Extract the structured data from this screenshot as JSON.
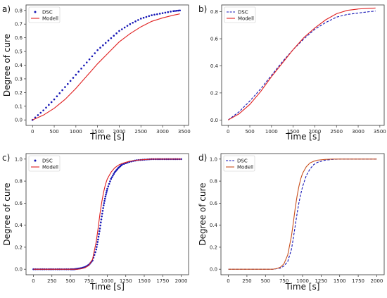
{
  "chart_data": [
    {
      "panel_label": "a)",
      "type": "line",
      "xlabel": "Time [s]",
      "ylabel": "Degree of cure",
      "xlim": [
        -150,
        3600
      ],
      "ylim": [
        -0.04,
        0.84
      ],
      "xticks": [
        0,
        500,
        1000,
        1500,
        2000,
        2500,
        3000,
        3500
      ],
      "yticks": [
        0.0,
        0.1,
        0.2,
        0.3,
        0.4,
        0.5,
        0.6,
        0.7,
        0.8
      ],
      "ytick_labels": [
        "0.0",
        "0.1",
        "0.2",
        "0.3",
        "0.4",
        "0.5",
        "0.6",
        "0.7",
        "0.8"
      ],
      "grid": false,
      "legend": "upper-left",
      "series": [
        {
          "name": "DSC",
          "style": "dots",
          "color": "#1515b5",
          "x": [
            0,
            250,
            500,
            750,
            1000,
            1250,
            1500,
            1750,
            2000,
            2250,
            2500,
            2750,
            3000,
            3250,
            3400
          ],
          "y": [
            0.0,
            0.07,
            0.15,
            0.24,
            0.33,
            0.42,
            0.51,
            0.58,
            0.65,
            0.7,
            0.74,
            0.765,
            0.78,
            0.795,
            0.8
          ]
        },
        {
          "name": "Modell",
          "style": "line",
          "color": "#e02020",
          "x": [
            0,
            250,
            500,
            750,
            1000,
            1250,
            1500,
            1750,
            2000,
            2250,
            2500,
            2750,
            3000,
            3250,
            3400
          ],
          "y": [
            0.0,
            0.035,
            0.085,
            0.15,
            0.23,
            0.32,
            0.41,
            0.49,
            0.57,
            0.63,
            0.68,
            0.72,
            0.745,
            0.765,
            0.775
          ]
        }
      ]
    },
    {
      "panel_label": "b)",
      "type": "line",
      "xlabel": "Time [s]",
      "ylabel": "",
      "xlim": [
        -150,
        3600
      ],
      "ylim": [
        -0.04,
        0.85
      ],
      "xticks": [
        0,
        500,
        1000,
        1500,
        2000,
        2500,
        3000,
        3500
      ],
      "yticks": [
        0.0,
        0.2,
        0.4,
        0.6,
        0.8
      ],
      "ytick_labels": [
        "0.0",
        "0.2",
        "0.4",
        "0.6",
        "0.8"
      ],
      "grid": false,
      "legend": "upper-left",
      "series": [
        {
          "name": "DSC",
          "style": "dashed",
          "color": "#1515b5",
          "x": [
            0,
            250,
            500,
            750,
            1000,
            1250,
            1500,
            1750,
            2000,
            2250,
            2500,
            2750,
            3000,
            3250,
            3400
          ],
          "y": [
            0.0,
            0.06,
            0.14,
            0.23,
            0.33,
            0.43,
            0.52,
            0.6,
            0.67,
            0.72,
            0.76,
            0.78,
            0.79,
            0.8,
            0.805
          ]
        },
        {
          "name": "Modell",
          "style": "line",
          "color": "#e02020",
          "x": [
            0,
            250,
            500,
            750,
            1000,
            1250,
            1500,
            1750,
            2000,
            2250,
            2500,
            2750,
            3000,
            3250,
            3400
          ],
          "y": [
            0.0,
            0.045,
            0.115,
            0.21,
            0.32,
            0.42,
            0.52,
            0.61,
            0.68,
            0.74,
            0.785,
            0.81,
            0.82,
            0.825,
            0.827
          ]
        }
      ]
    },
    {
      "panel_label": "c)",
      "type": "line",
      "xlabel": "Time [s]",
      "ylabel": "Degree of cure",
      "xlim": [
        -100,
        2100
      ],
      "ylim": [
        -0.05,
        1.05
      ],
      "xticks": [
        0,
        250,
        500,
        750,
        1000,
        1250,
        1500,
        1750,
        2000
      ],
      "yticks": [
        0.0,
        0.2,
        0.4,
        0.6,
        0.8,
        1.0
      ],
      "ytick_labels": [
        "0.0",
        "0.2",
        "0.4",
        "0.6",
        "0.8",
        "1.0"
      ],
      "grid": false,
      "legend": "upper-left",
      "series": [
        {
          "name": "DSC",
          "style": "dots",
          "color": "#1515b5",
          "x": [
            0,
            100,
            200,
            300,
            400,
            500,
            550,
            600,
            650,
            700,
            750,
            800,
            850,
            875,
            900,
            925,
            950,
            975,
            1000,
            1050,
            1100,
            1150,
            1200,
            1300,
            1400,
            1500,
            1600,
            1700,
            1800,
            1900,
            2000
          ],
          "y": [
            0.0,
            0.0,
            0.0,
            0.0,
            0.0,
            0.0,
            0.0,
            0.005,
            0.01,
            0.02,
            0.04,
            0.08,
            0.18,
            0.27,
            0.37,
            0.48,
            0.58,
            0.66,
            0.73,
            0.82,
            0.88,
            0.92,
            0.95,
            0.975,
            0.99,
            0.995,
            1.0,
            1.0,
            1.0,
            1.0,
            1.0
          ]
        },
        {
          "name": "Modell",
          "style": "line",
          "color": "#e02020",
          "x": [
            0,
            100,
            200,
            300,
            400,
            500,
            600,
            650,
            700,
            750,
            800,
            850,
            875,
            900,
            925,
            950,
            975,
            1000,
            1050,
            1100,
            1150,
            1200,
            1300,
            1400,
            1500,
            1600,
            1750,
            2000
          ],
          "y": [
            0.0,
            0.0,
            0.0,
            0.0,
            0.0,
            0.0,
            0.0,
            0.005,
            0.015,
            0.035,
            0.09,
            0.25,
            0.37,
            0.5,
            0.61,
            0.7,
            0.77,
            0.82,
            0.88,
            0.92,
            0.945,
            0.96,
            0.98,
            0.99,
            0.995,
            1.0,
            1.0,
            1.0
          ]
        }
      ]
    },
    {
      "panel_label": "d)",
      "type": "line",
      "xlabel": "Time [s]",
      "ylabel": "Degree of cure",
      "xlim": [
        -100,
        2100
      ],
      "ylim": [
        -0.05,
        1.05
      ],
      "xticks": [
        0,
        250,
        500,
        750,
        1000,
        1250,
        1500,
        1750,
        2000
      ],
      "yticks": [
        0.0,
        0.2,
        0.4,
        0.6,
        0.8,
        1.0
      ],
      "ytick_labels": [
        "0.0",
        "0.2",
        "0.4",
        "0.6",
        "0.8",
        "1.0"
      ],
      "grid": false,
      "legend": "upper-left",
      "series": [
        {
          "name": "DSC",
          "style": "dashed",
          "color": "#1515b5",
          "x": [
            0,
            100,
            200,
            300,
            400,
            500,
            600,
            650,
            700,
            750,
            800,
            850,
            875,
            900,
            925,
            950,
            975,
            1000,
            1050,
            1100,
            1150,
            1200,
            1300,
            1400,
            1500,
            1600,
            1750,
            2000
          ],
          "y": [
            0.0,
            0.0,
            0.0,
            0.0,
            0.0,
            0.0,
            0.0,
            0.005,
            0.01,
            0.03,
            0.07,
            0.18,
            0.28,
            0.39,
            0.5,
            0.6,
            0.68,
            0.75,
            0.85,
            0.91,
            0.95,
            0.97,
            0.99,
            0.997,
            1.0,
            1.0,
            1.0,
            1.0
          ]
        },
        {
          "name": "Modell",
          "style": "line",
          "color": "#c8501e",
          "x": [
            0,
            100,
            200,
            300,
            400,
            500,
            600,
            650,
            700,
            750,
            800,
            850,
            875,
            900,
            925,
            950,
            975,
            1000,
            1050,
            1100,
            1150,
            1200,
            1300,
            1400,
            1500,
            1600,
            1750,
            2000
          ],
          "y": [
            0.0,
            0.0,
            0.0,
            0.0,
            0.0,
            0.0,
            0.0,
            0.006,
            0.018,
            0.05,
            0.13,
            0.3,
            0.42,
            0.55,
            0.66,
            0.75,
            0.82,
            0.87,
            0.93,
            0.965,
            0.98,
            0.99,
            0.997,
            1.0,
            1.0,
            1.0,
            1.0,
            1.0
          ]
        }
      ]
    }
  ]
}
